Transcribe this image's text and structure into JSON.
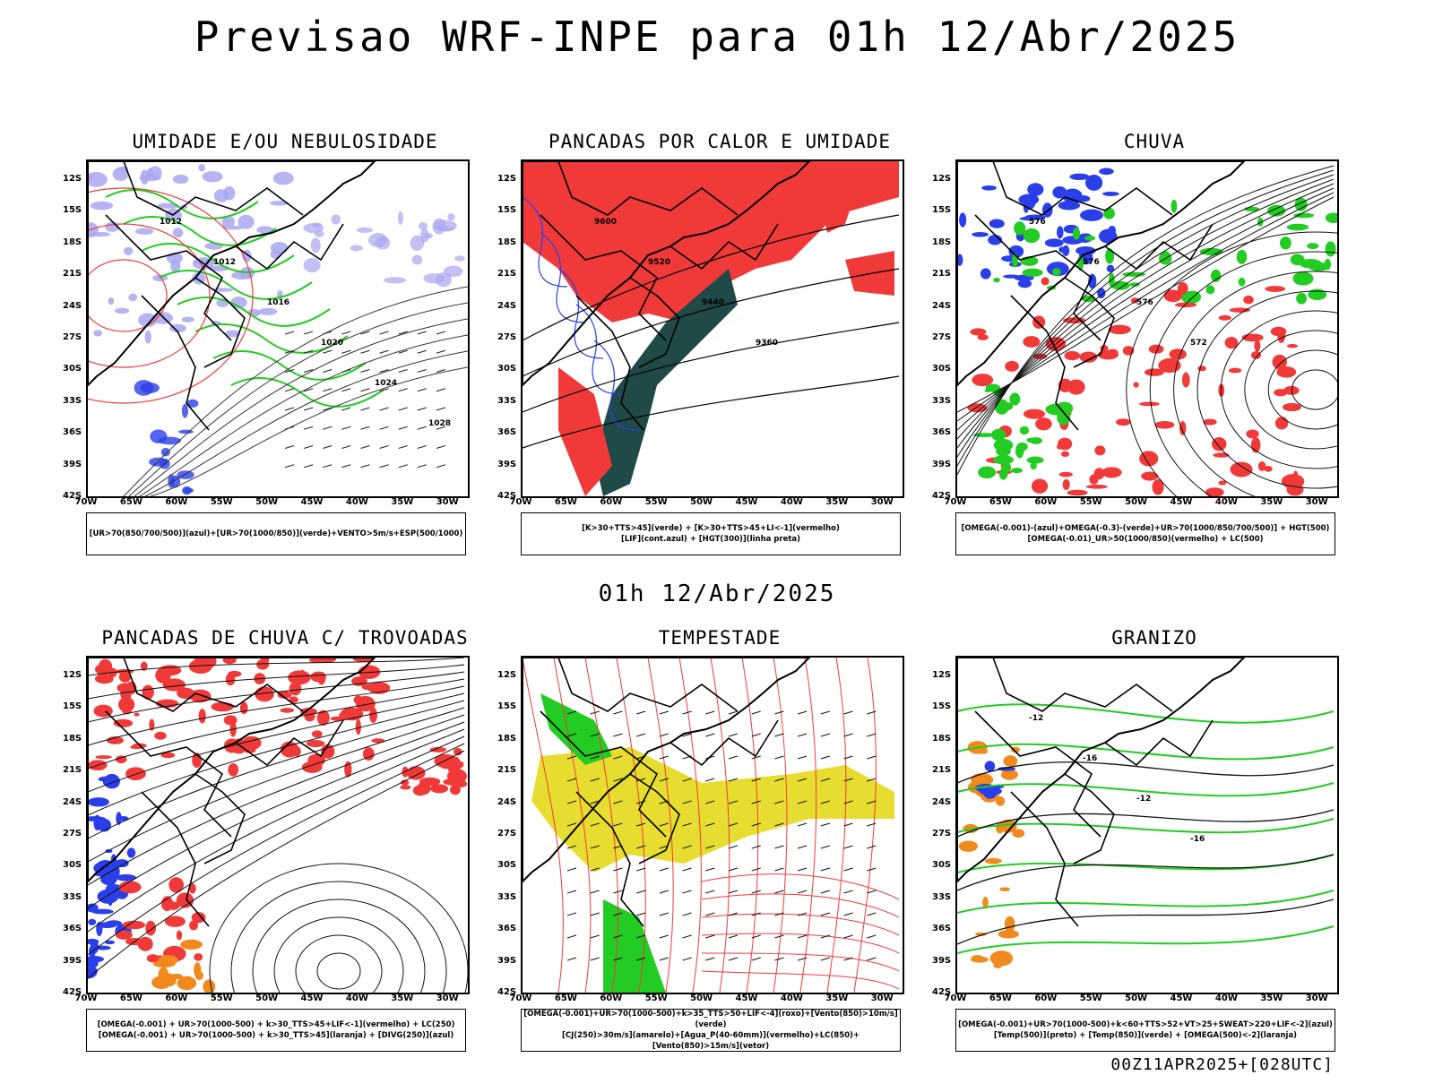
{
  "header": {
    "title": "Previsao WRF-INPE  para 01h 12/Abr/2025"
  },
  "mid_title": "01h 12/Abr/2025",
  "footer": "00Z11APR2025+[028UTC]",
  "axes": {
    "lat_labels": [
      "12S",
      "15S",
      "18S",
      "21S",
      "24S",
      "27S",
      "30S",
      "33S",
      "36S",
      "39S",
      "42S"
    ],
    "lon_labels": [
      "70W",
      "65W",
      "60W",
      "55W",
      "50W",
      "45W",
      "40W",
      "35W",
      "30W"
    ]
  },
  "panels": [
    {
      "title": "UMIDADE E/OU NEBULOSIDADE",
      "legend": [
        "[UR>70(850/700/500)](azul)+[UR>70(1000/850)](verde)+VENTO>5m/s+ESP(500/1000)"
      ],
      "contour_labels": [
        "1012",
        "1012",
        "1016",
        "1020",
        "1024",
        "1028"
      ]
    },
    {
      "title": "PANCADAS POR CALOR E UMIDADE",
      "legend": [
        "[K>30+TTS>45](verde) + [K>30+TTS>45+LI<-1](vermelho)",
        "[LIF](cont.azul) + [HGT(300)](linha preta)"
      ],
      "contour_labels": [
        "9600",
        "9520",
        "9440",
        "9360"
      ]
    },
    {
      "title": "CHUVA",
      "legend": [
        "[OMEGA(-0.001)-(azul)+OMEGA(-0.3)-(verde)+UR>70(1000/850/700/500)] + HGT(500)",
        "[OMEGA(-0.01)_UR>50(1000/850)(vermelho) + LC(500)"
      ],
      "contour_labels": [
        "576",
        "576",
        "576",
        "572"
      ]
    },
    {
      "title": "PANCADAS DE CHUVA C/ TROVOADAS",
      "legend": [
        "[OMEGA(-0.001) + UR>70(1000-500) + k>30_TTS>45+LIF<-1](vermelho) + LC(250)",
        "[OMEGA(-0.001) + UR>70(1000-500) + k>30_TTS>45](laranja) + [DIVG(250)](azul)"
      ],
      "contour_labels": []
    },
    {
      "title": "TEMPESTADE",
      "legend": [
        "[OMEGA(-0.001)+UR>70(1000-500)+k>35_TTS>50+LIF<-4](roxo)+[Vento(850)>10m/s](verde)",
        "[CJ(250)>30m/s](amarelo)+[Agua_P(40-60mm)](vermelho)+LC(850)+[Vento(850)>15m/s](vetor)"
      ],
      "contour_labels": []
    },
    {
      "title": "GRANIZO",
      "legend": [
        "[OMEGA(-0.001)+UR>70(1000-500)+k<60+TTS>52+VT>25+SWEAT>220+LIF<-2](azul)",
        "[Temp(500)](preto) + [Temp(850)](verde) + [OMEGA(500)<-2](laranja)"
      ],
      "contour_labels": [
        "-12",
        "-16",
        "-12",
        "-16"
      ]
    }
  ],
  "colors": {
    "blue": "#2a3fe8",
    "lightblue": "#a9a7f0",
    "green": "#22cc22",
    "red": "#f03a3a",
    "darkgreen": "#1f4a47",
    "yellow": "#e6dd30",
    "orange": "#f08a1e",
    "purple": "#a020f0"
  }
}
